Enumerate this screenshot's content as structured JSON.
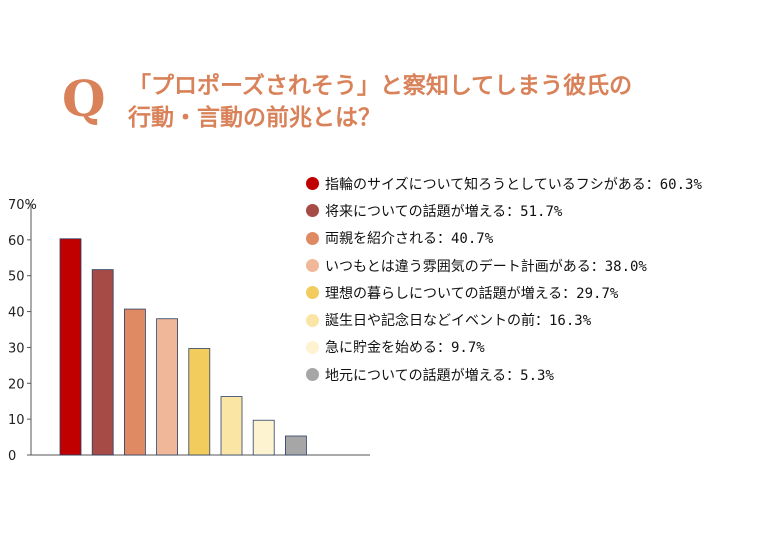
{
  "title": {
    "q_mark": "Q",
    "line1": "「プロポーズされそう」と察知してしまう彼氏の",
    "line2": "行動・言動の前兆とは？"
  },
  "chart_data": {
    "type": "bar",
    "categories": [
      "指輪のサイズについて知ろうとしているフシがある",
      "将来についての話題が増える",
      "両親を紹介される",
      "いつもとは違う雰囲気のデート計画がある",
      "理想の暮らしについての話題が増える",
      "誕生日や記念日などイベントの前",
      "急に貯金を始める",
      "地元についての話題が増える"
    ],
    "values": [
      60.3,
      51.7,
      40.7,
      38.0,
      29.7,
      16.3,
      9.7,
      5.3
    ],
    "colors": [
      "#c00000",
      "#a64b46",
      "#e08a64",
      "#f0b898",
      "#f2cc5c",
      "#fbe5a4",
      "#fef3d0",
      "#a6a6a6"
    ],
    "legend_labels": [
      "指輪のサイズについて知ろうとしているフシがある：60.3%",
      "将来についての話題が増える：51.7%",
      "両親を紹介される：40.7%",
      "いつもとは違う雰囲気のデート計画がある：38.0%",
      "理想の暮らしについての話題が増える：29.7%",
      "誕生日や記念日などイベントの前：16.3%",
      "急に貯金を始める：9.7%",
      "地元についての話題が増える：5.3%"
    ],
    "y_ticks": [
      "0",
      "10",
      "20",
      "30",
      "40",
      "50",
      "60",
      "70%"
    ],
    "ylim": [
      0,
      70
    ],
    "grid": false,
    "legend_position": "right"
  }
}
